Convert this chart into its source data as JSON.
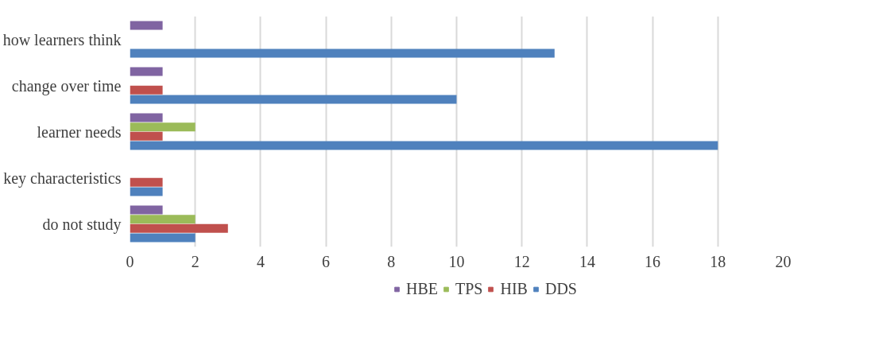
{
  "chart_data": {
    "type": "bar",
    "orientation": "horizontal",
    "categories": [
      "how learners think",
      "change over time",
      "learner needs",
      "key characteristics",
      "do not study"
    ],
    "series": [
      {
        "name": "HBE",
        "color": "#8064a2",
        "values": [
          1,
          1,
          1,
          null,
          1
        ]
      },
      {
        "name": "TPS",
        "color": "#9bbb59",
        "values": [
          null,
          null,
          2,
          null,
          2
        ]
      },
      {
        "name": "HIB",
        "color": "#c0504d",
        "values": [
          null,
          1,
          1,
          1,
          3
        ]
      },
      {
        "name": "DDS",
        "color": "#4f81bd",
        "values": [
          13,
          10,
          18,
          1,
          2
        ]
      }
    ],
    "xlim": [
      0,
      20
    ],
    "xticks": [
      0,
      2,
      4,
      6,
      8,
      10,
      12,
      14,
      16,
      18,
      20
    ],
    "grid": "x",
    "legend": "bottom"
  }
}
